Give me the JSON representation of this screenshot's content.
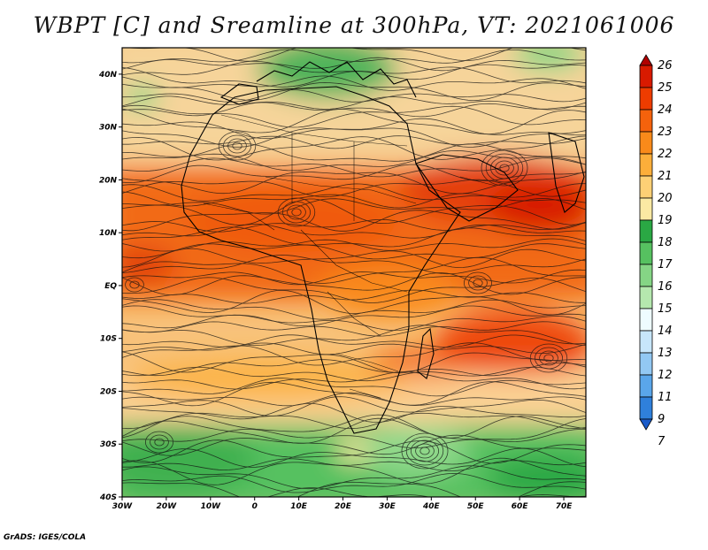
{
  "title": "WBPT [C] and Sreamline at 300hPa, VT: 2021061006",
  "credit": "GrADS: IGES/COLA",
  "map": {
    "lat_labels": [
      "40N",
      "30N",
      "20N",
      "10N",
      "EQ",
      "10S",
      "20S",
      "30S",
      "40S"
    ],
    "lon_labels": [
      "30W",
      "20W",
      "10W",
      "0",
      "10E",
      "20E",
      "30E",
      "40E",
      "50E",
      "60E",
      "70E"
    ],
    "lat_range": [
      -40,
      45
    ],
    "lon_range": [
      -30,
      75
    ]
  },
  "colorbar": {
    "labels": [
      "26",
      "25",
      "24",
      "23",
      "22",
      "21",
      "20",
      "19",
      "18",
      "17",
      "16",
      "15",
      "14",
      "13",
      "12",
      "11",
      "9",
      "7"
    ],
    "colors": [
      "#b00000",
      "#d81a00",
      "#ee3c00",
      "#f5620c",
      "#f98a1a",
      "#fcae3a",
      "#fdd075",
      "#fbe9a3",
      "#2aa844",
      "#56c160",
      "#85d585",
      "#b5e8ae",
      "#eefcff",
      "#c7e6fb",
      "#92c8f3",
      "#5aa6ea",
      "#2f80db",
      "#1a5bc9"
    ]
  },
  "chart_data": {
    "type": "heatmap",
    "title": "WBPT [C] and Sreamline at 300hPa, VT: 2021061006",
    "xlabel": "",
    "ylabel": "",
    "x_range": [
      "30W",
      "75E"
    ],
    "y_range": [
      "40S",
      "45N"
    ],
    "legend": "colorbar right",
    "colorbar_levels": [
      7,
      9,
      11,
      12,
      13,
      14,
      15,
      16,
      17,
      18,
      19,
      20,
      21,
      22,
      23,
      24,
      25,
      26
    ]
  }
}
